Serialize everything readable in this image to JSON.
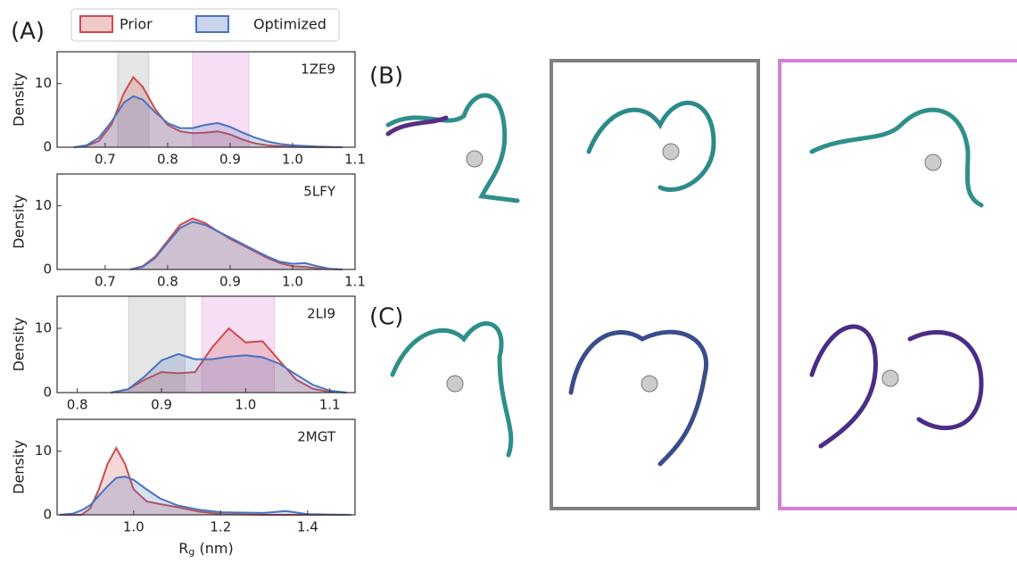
{
  "panel_labels": [
    "(A)",
    "(B)",
    "(C)"
  ],
  "chart_data": [
    {
      "type": "line",
      "title": "1ZE9",
      "ylabel": "Density",
      "xlim": [
        0.623,
        1.1
      ],
      "ylim": [
        0,
        15
      ],
      "xticks": [
        0.7,
        0.8,
        0.9,
        {
          "value": 1,
          "label": "1.0"
        },
        1.1
      ],
      "yticks": [
        0,
        10
      ],
      "spans": [
        {
          "color": "#b5b5b5",
          "xrange": [
            0.72,
            0.77
          ]
        },
        {
          "color": "#e6a3e0",
          "xrange": [
            0.84,
            0.93
          ]
        }
      ],
      "x": [
        0.65,
        0.67,
        0.69,
        0.71,
        0.73,
        0.745,
        0.76,
        0.78,
        0.8,
        0.82,
        0.84,
        0.86,
        0.88,
        0.9,
        0.92,
        0.94,
        0.96,
        0.98,
        1.0,
        1.04,
        1.08
      ],
      "series": [
        {
          "name": "Prior",
          "color": "#cc4b4b",
          "values": [
            0,
            0.2,
            1,
            3.5,
            8.5,
            11,
            9.5,
            6,
            3.5,
            2.5,
            2.2,
            2.3,
            2.5,
            2,
            1.2,
            0.6,
            0.3,
            0.15,
            0.05,
            0,
            0
          ]
        },
        {
          "name": "Optimized",
          "color": "#4a72bf",
          "values": [
            0,
            0.3,
            1.5,
            4,
            7,
            8,
            7.5,
            5.5,
            3.8,
            3,
            3,
            3.5,
            3.8,
            3.2,
            2.3,
            1.5,
            0.9,
            0.5,
            0.3,
            0.1,
            0
          ]
        }
      ]
    },
    {
      "type": "line",
      "title": "5LFY",
      "ylabel": "Density",
      "xlim": [
        0.623,
        1.1
      ],
      "ylim": [
        0,
        15
      ],
      "xticks": [
        0.7,
        0.8,
        0.9,
        {
          "value": 1,
          "label": "1.0"
        },
        1.1
      ],
      "yticks": [
        0,
        10
      ],
      "x": [
        0.74,
        0.76,
        0.78,
        0.8,
        0.82,
        0.84,
        0.86,
        0.88,
        0.9,
        0.92,
        0.94,
        0.96,
        0.98,
        1.0,
        1.02,
        1.04,
        1.06,
        1.08
      ],
      "series": [
        {
          "color": "#cc4b4b",
          "values": [
            0,
            0.5,
            2,
            4.5,
            7,
            8,
            7.3,
            6,
            4.8,
            3.8,
            2.8,
            1.8,
            1,
            0.5,
            0.4,
            0.2,
            0.05,
            0
          ]
        },
        {
          "color": "#4a72bf",
          "values": [
            0,
            0.4,
            1.8,
            4.2,
            6.5,
            7.5,
            7,
            6,
            5,
            4,
            3,
            2,
            1.2,
            0.9,
            1,
            0.5,
            0.1,
            0
          ]
        }
      ]
    },
    {
      "type": "line",
      "title": "2LI9",
      "ylabel": "Density",
      "xlim": [
        0.776,
        1.13
      ],
      "ylim": [
        0,
        15
      ],
      "xticks": [
        0.8,
        0.9,
        {
          "value": 1,
          "label": "1.0"
        },
        1.1
      ],
      "yticks": [
        0,
        10
      ],
      "spans": [
        {
          "color": "#b5b5b5",
          "xrange": [
            0.861,
            0.928
          ]
        },
        {
          "color": "#e6a3e0",
          "xrange": [
            0.948,
            1.034
          ]
        }
      ],
      "x": [
        0.84,
        0.86,
        0.88,
        0.9,
        0.92,
        0.94,
        0.96,
        0.98,
        1.0,
        1.02,
        1.04,
        1.06,
        1.08,
        1.1,
        1.12
      ],
      "series": [
        {
          "color": "#cc4b4b",
          "values": [
            0,
            0.5,
            2,
            3.2,
            3,
            3.2,
            7,
            10,
            7.8,
            8,
            5,
            2,
            0.6,
            0.1,
            0
          ]
        },
        {
          "color": "#4a72bf",
          "values": [
            0,
            0.5,
            2.5,
            5,
            6,
            5.2,
            5.2,
            5.6,
            5.8,
            5.5,
            4.5,
            2.8,
            1.2,
            0.3,
            0
          ]
        }
      ]
    },
    {
      "type": "line",
      "title": "2MGT",
      "ylabel": "Density",
      "xlabel": {
        "text": "R",
        "sub": "g",
        "unit": " (nm)"
      },
      "xlim": [
        0.824,
        1.509
      ],
      "ylim": [
        0,
        15
      ],
      "xticks": [
        {
          "value": 1,
          "label": "1.0"
        },
        1.2,
        1.4
      ],
      "yticks": [
        0,
        10
      ],
      "x": [
        0.83,
        0.86,
        0.88,
        0.9,
        0.92,
        0.94,
        0.96,
        0.98,
        1.0,
        1.03,
        1.06,
        1.1,
        1.15,
        1.2,
        1.3,
        1.35,
        1.4,
        1.5
      ],
      "series": [
        {
          "color": "#cc4b4b",
          "values": [
            0,
            0,
            0,
            1,
            4,
            8,
            10.5,
            8,
            4,
            2.1,
            1.7,
            1.2,
            0.5,
            0.1,
            0,
            0,
            0,
            0
          ]
        },
        {
          "color": "#4a72bf",
          "values": [
            0,
            0.2,
            0.7,
            1.5,
            3,
            4.5,
            5.8,
            6,
            5.5,
            4,
            2.6,
            1.5,
            0.8,
            0.4,
            0.3,
            0.6,
            0.1,
            0
          ]
        }
      ]
    }
  ]
}
